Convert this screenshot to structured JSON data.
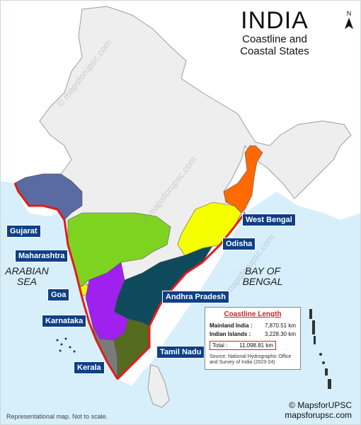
{
  "title": "INDIA",
  "subtitle_line1": "Coastline and",
  "subtitle_line2": "Coastal States",
  "north_label": "N",
  "seas": {
    "arabian_line1": "ARABIAN",
    "arabian_line2": "SEA",
    "bengal_line1": "BAY OF",
    "bengal_line2": "BENGAL"
  },
  "states": {
    "gujarat": "Gujarat",
    "maharashtra": "Maharashtra",
    "goa": "Goa",
    "karnataka": "Karnataka",
    "kerala": "Kerala",
    "tamil_nadu": "Tamil Nadu",
    "andhra_pradesh": "Andhra Pradesh",
    "odisha": "Odisha",
    "west_bengal": "West Bengal"
  },
  "legend": {
    "heading": "Coastline Length",
    "mainland_label": "Mainland India :",
    "mainland_value": "7,870.51 km",
    "islands_label": "Indian Islands :",
    "islands_value": "3,228.30 km",
    "total_label": "Total :",
    "total_value": "11,098.81 km",
    "source_line1": "Source: National Hydrographic Office",
    "source_line2": "and Survey of India (2023-24)"
  },
  "footer_note": "Representational map. Not to scale.",
  "brand_name": "MapsforUPSC",
  "brand_url": "mapsforupsc.com",
  "watermark": "© mapsforupsc.com",
  "colors": {
    "sea": "#d6effa",
    "land": "#eeeeee",
    "coastline": "#e21b1b",
    "gujarat": "#5a6aa2",
    "maharashtra": "#7ed321",
    "goa": "#f5f500",
    "karnataka": "#a020f0",
    "kerala": "#7a7a7a",
    "tamil_nadu": "#556b1f",
    "andhra_pradesh": "#0f4a5c",
    "odisha": "#f5ff00",
    "west_bengal": "#ff6a00",
    "label_bg": "#0f3f86"
  }
}
